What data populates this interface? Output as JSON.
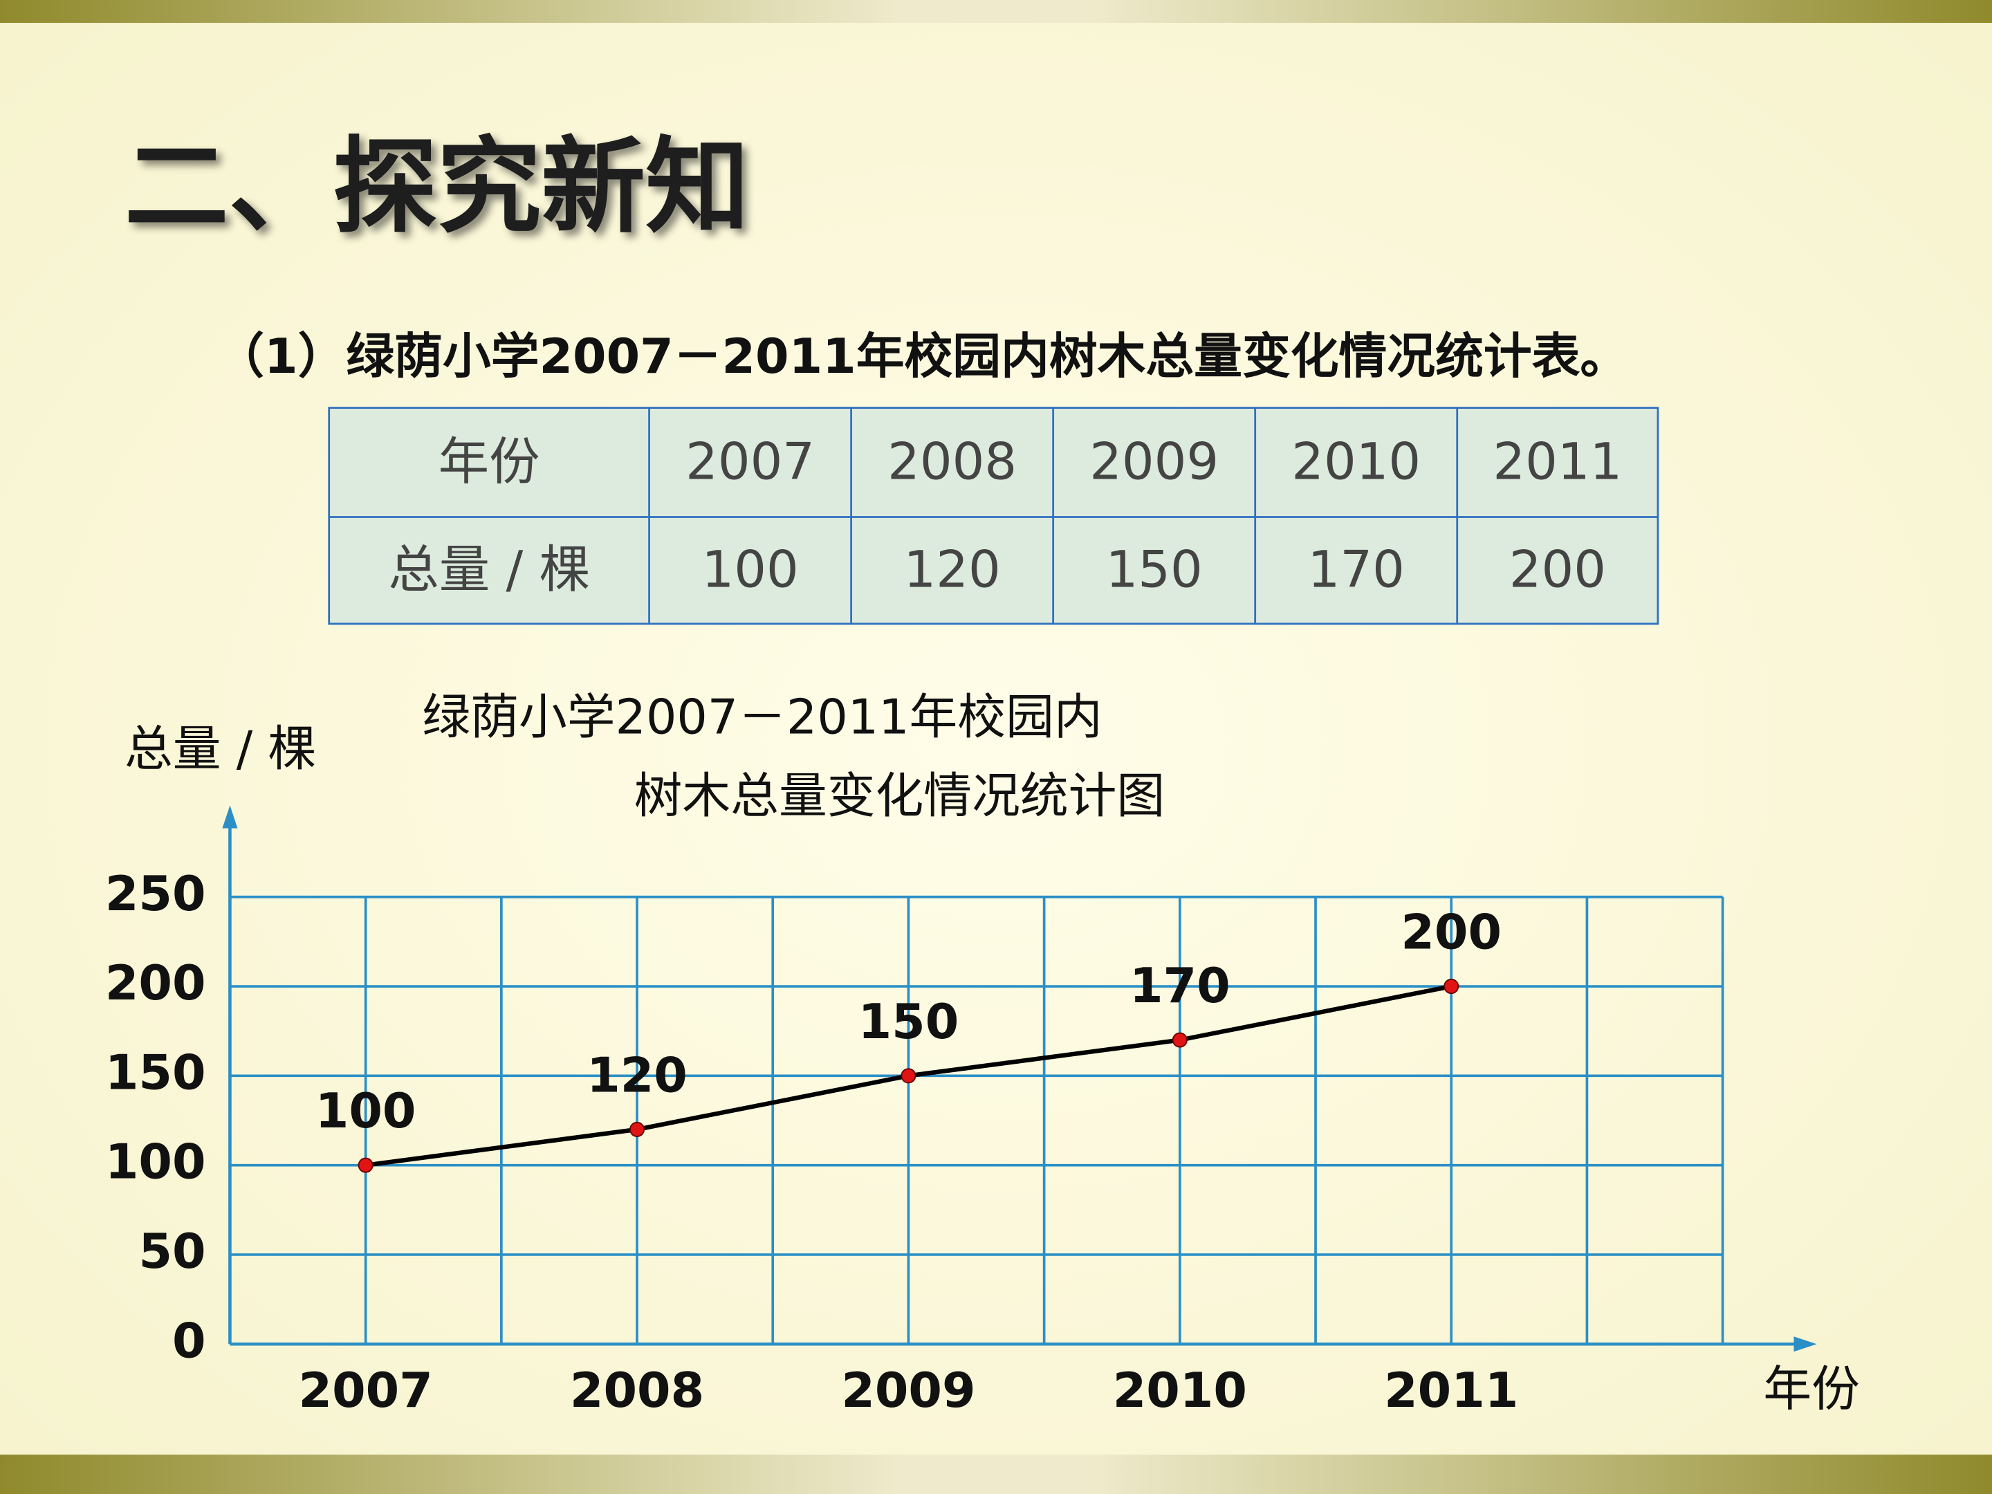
{
  "title": "二、探究新知",
  "subtitle": "（1）绿荫小学2007－2011年校园内树木总量变化情况统计表。",
  "table": {
    "rows": [
      [
        "年份",
        "2007",
        "2008",
        "2009",
        "2010",
        "2011"
      ],
      [
        "总量 / 棵",
        "100",
        "120",
        "150",
        "170",
        "200"
      ]
    ]
  },
  "chart_data": {
    "type": "line",
    "title": [
      "绿荫小学2007－2011年校园内",
      "树木总量变化情况统计图"
    ],
    "y_label": "总量 / 棵",
    "x_label": "年份",
    "categories": [
      "2007",
      "2008",
      "2009",
      "2010",
      "2011"
    ],
    "values": [
      100,
      120,
      150,
      170,
      200
    ],
    "color": "#000000",
    "marker_color": "#e01414",
    "grid_color": "#2b8fc6",
    "ylim": [
      0,
      250
    ],
    "yticks": [
      0,
      50,
      100,
      150,
      200,
      250
    ],
    "grid": true
  }
}
